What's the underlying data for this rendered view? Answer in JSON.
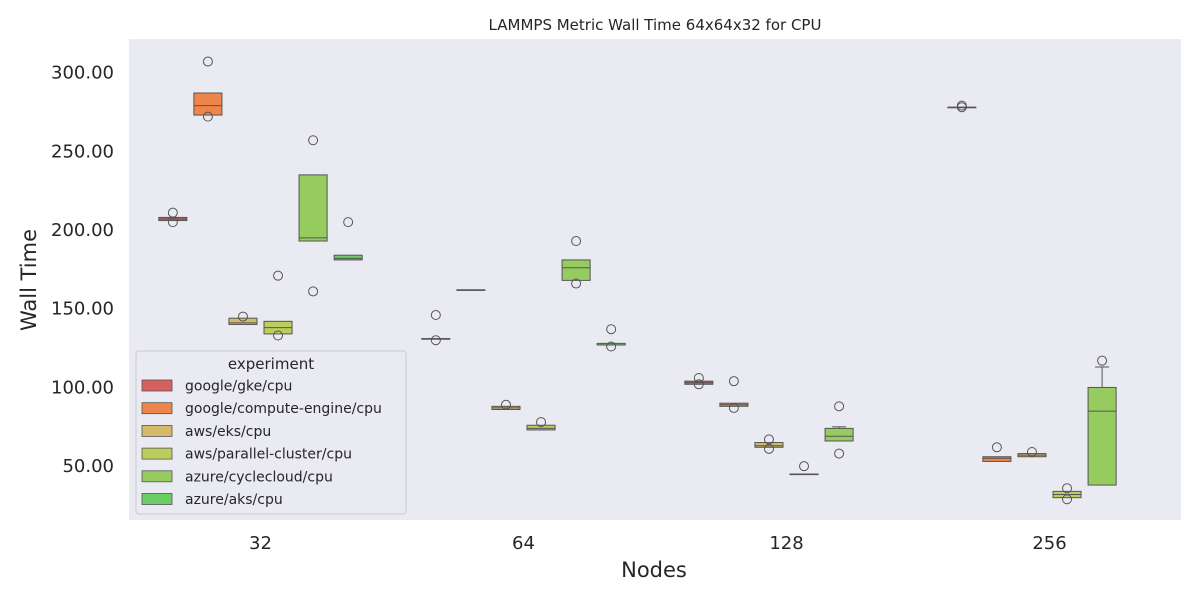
{
  "chart_data": {
    "type": "box",
    "title": "LAMMPS Metric Wall Time 64x64x32 for CPU",
    "xlabel": "Nodes",
    "ylabel": "Wall Time",
    "categories": [
      "32",
      "64",
      "128",
      "256"
    ],
    "yticks": [
      "50.00",
      "100.00",
      "150.00",
      "200.00",
      "250.00",
      "300.00"
    ],
    "ylim": [
      13.5,
      320
    ],
    "grid": false,
    "legend": {
      "title": "experiment",
      "position": "bottom-left"
    },
    "series": [
      {
        "name": "google/gke/cpu",
        "color": "#d65f5f",
        "boxes": [
          {
            "category": "32",
            "whislo": 206,
            "q1": 206,
            "med": 207,
            "q3": 208,
            "whishi": 208,
            "fliers": [
              211,
              205
            ]
          },
          {
            "category": "64",
            "whislo": 131,
            "q1": 131,
            "med": 131,
            "q3": 131,
            "whishi": 131,
            "fliers": [
              146,
              130
            ]
          },
          {
            "category": "128",
            "whislo": 102,
            "q1": 102,
            "med": 103,
            "q3": 104,
            "whishi": 104,
            "fliers": [
              106,
              102
            ]
          },
          {
            "category": "256",
            "whislo": 278,
            "q1": 278,
            "med": 278,
            "q3": 278,
            "whishi": 278,
            "fliers": [
              279,
              278
            ]
          }
        ]
      },
      {
        "name": "google/compute-engine/cpu",
        "color": "#ee854a",
        "boxes": [
          {
            "category": "32",
            "whislo": 273,
            "q1": 273,
            "med": 279,
            "q3": 287,
            "whishi": 287,
            "fliers": [
              307,
              272
            ]
          },
          {
            "category": "64",
            "whislo": 162,
            "q1": 162,
            "med": 162,
            "q3": 162,
            "whishi": 162,
            "fliers": []
          },
          {
            "category": "128",
            "whislo": 88,
            "q1": 88,
            "med": 89,
            "q3": 90,
            "whishi": 90,
            "fliers": [
              104,
              87
            ]
          },
          {
            "category": "256",
            "whislo": 53,
            "q1": 53,
            "med": 55,
            "q3": 56,
            "whishi": 56,
            "fliers": [
              62
            ]
          }
        ]
      },
      {
        "name": "aws/eks/cpu",
        "color": "#d5bb67",
        "boxes": [
          {
            "category": "32",
            "whislo": 140,
            "q1": 140,
            "med": 141,
            "q3": 144,
            "whishi": 144,
            "fliers": [
              145
            ]
          },
          {
            "category": "64",
            "whislo": 86,
            "q1": 86,
            "med": 87,
            "q3": 88,
            "whishi": 88,
            "fliers": [
              89
            ]
          },
          {
            "category": "128",
            "whislo": 62,
            "q1": 62,
            "med": 63,
            "q3": 65,
            "whishi": 65,
            "fliers": [
              67,
              61
            ]
          },
          {
            "category": "256",
            "whislo": 56,
            "q1": 56,
            "med": 57,
            "q3": 58,
            "whishi": 58,
            "fliers": [
              59
            ]
          }
        ]
      },
      {
        "name": "aws/parallel-cluster/cpu",
        "color": "#bccc5f",
        "boxes": [
          {
            "category": "32",
            "whislo": 134,
            "q1": 134,
            "med": 138,
            "q3": 142,
            "whishi": 142,
            "fliers": [
              171,
              133
            ]
          },
          {
            "category": "64",
            "whislo": 73,
            "q1": 73,
            "med": 74,
            "q3": 76,
            "whishi": 76,
            "fliers": [
              78
            ]
          },
          {
            "category": "128",
            "whislo": 45,
            "q1": 45,
            "med": 45,
            "q3": 45,
            "whishi": 45,
            "fliers": [
              50
            ]
          },
          {
            "category": "256",
            "whislo": 30,
            "q1": 30,
            "med": 32,
            "q3": 34,
            "whishi": 34,
            "fliers": [
              36,
              29
            ]
          }
        ]
      },
      {
        "name": "azure/cyclecloud/cpu",
        "color": "#96cc5f",
        "boxes": [
          {
            "category": "32",
            "whislo": 193,
            "q1": 193,
            "med": 195,
            "q3": 235,
            "whishi": 235,
            "fliers": [
              257,
              161
            ]
          },
          {
            "category": "64",
            "whislo": 168,
            "q1": 168,
            "med": 176,
            "q3": 181,
            "whishi": 181,
            "fliers": [
              193,
              166
            ]
          },
          {
            "category": "128",
            "whislo": 66,
            "q1": 66,
            "med": 69,
            "q3": 74,
            "whishi": 75,
            "fliers": [
              88,
              58
            ]
          },
          {
            "category": "256",
            "whislo": 38,
            "q1": 38,
            "med": 85,
            "q3": 100,
            "whishi": 113,
            "fliers": [
              117
            ]
          }
        ]
      },
      {
        "name": "azure/aks/cpu",
        "color": "#6acc64",
        "boxes": [
          {
            "category": "32",
            "whislo": 181,
            "q1": 181,
            "med": 182,
            "q3": 184,
            "whishi": 184,
            "fliers": [
              205
            ]
          },
          {
            "category": "64",
            "whislo": 127,
            "q1": 127,
            "med": 127,
            "q3": 128,
            "whishi": 128,
            "fliers": [
              137,
              126
            ]
          }
        ]
      }
    ]
  }
}
